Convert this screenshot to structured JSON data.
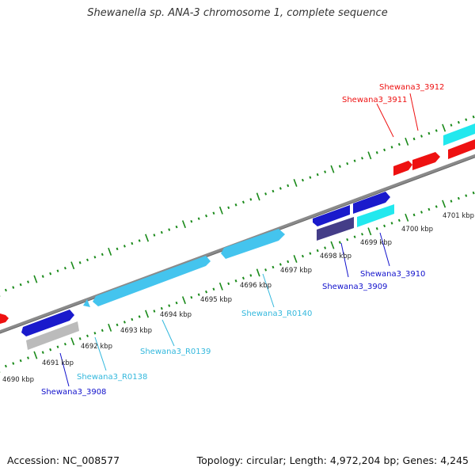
{
  "title": "Shewanella sp. ANA-3 chromosome 1, complete sequence",
  "footer": {
    "accession": "Accession: NC_008577",
    "summary": "Topology: circular; Length: 4,972,204 bp; Genes: 4,245"
  },
  "colors": {
    "backbone": "#888888",
    "tick": "#1a8a1a",
    "red_gene": "#ee1111",
    "blue_gene": "#1111cc",
    "light_blue_gene": "#44c4ee",
    "cyan_gene": "#22e8ee",
    "gray_gene": "#bbbbbb",
    "navy_gene": "#443d88"
  },
  "kbp_labels": [
    "4690 kbp",
    "4691 kbp",
    "4692 kbp",
    "4693 kbp",
    "4694 kbp",
    "4695 kbp",
    "4696 kbp",
    "4697 kbp",
    "4698 kbp",
    "4699 kbp",
    "4700 kbp",
    "4701 kbp"
  ],
  "gene_labels": [
    {
      "name": "Shewana3_3912",
      "color": "#ee1111"
    },
    {
      "name": "Shewana3_3911",
      "color": "#ee1111"
    },
    {
      "name": "Shewana3_3910",
      "color": "#1111cc"
    },
    {
      "name": "Shewana3_3909",
      "color": "#1111cc"
    },
    {
      "name": "Shewana3_R0140",
      "color": "#33b8dd"
    },
    {
      "name": "Shewana3_R0139",
      "color": "#33b8dd"
    },
    {
      "name": "Shewana3_R0138",
      "color": "#33b8dd"
    },
    {
      "name": "Shewana3_3908",
      "color": "#1111cc"
    }
  ]
}
